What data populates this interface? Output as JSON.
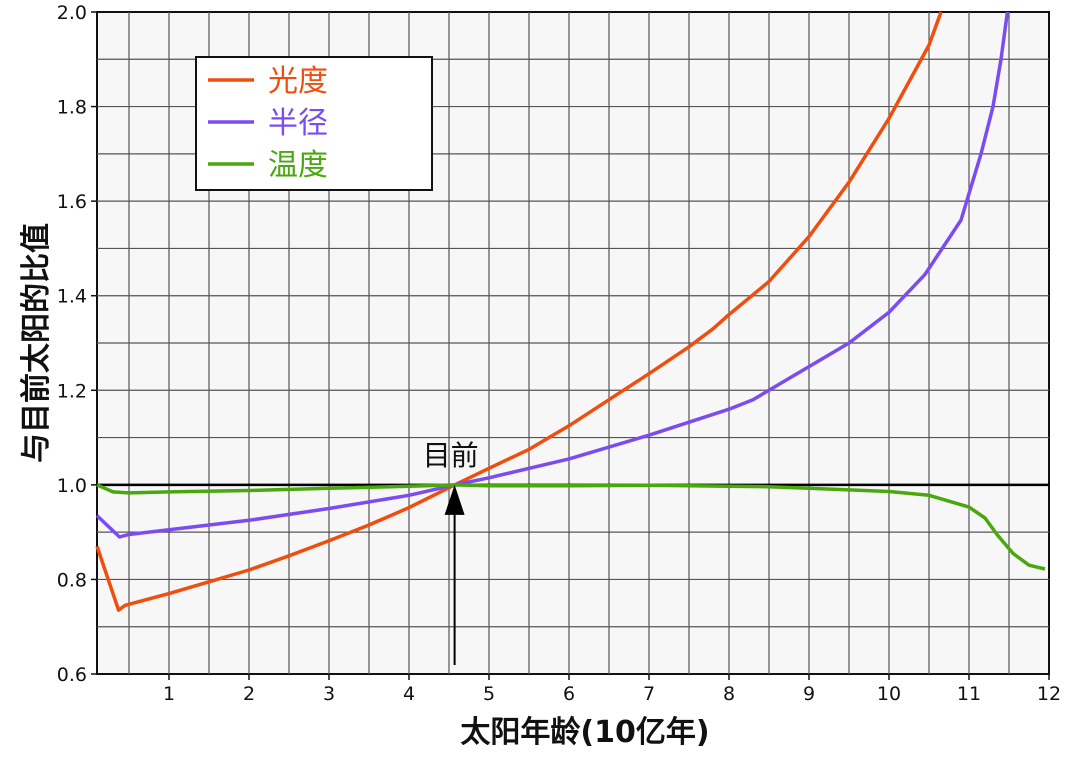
{
  "chart_data": {
    "type": "line",
    "xlabel": "太阳年龄(10亿年)",
    "ylabel": "与目前太阳的比值",
    "xlim": [
      0.1,
      12
    ],
    "ylim": [
      0.6,
      2.0
    ],
    "x_ticks": [
      "1",
      "2",
      "3",
      "4",
      "5",
      "6",
      "7",
      "8",
      "9",
      "10",
      "11",
      "12"
    ],
    "y_ticks": [
      "0.6",
      "0.8",
      "1.0",
      "1.2",
      "1.4",
      "1.6",
      "1.8",
      "2.0"
    ],
    "grid": true,
    "legend_position": "top-left",
    "reference_line": 1.0,
    "annotation": {
      "text": "目前",
      "x": 4.57,
      "y": 1.0
    },
    "series": [
      {
        "name": "光度",
        "color": "#f04e0f",
        "points": [
          [
            0.1,
            0.87
          ],
          [
            0.37,
            0.735
          ],
          [
            0.45,
            0.745
          ],
          [
            1.0,
            0.77
          ],
          [
            1.5,
            0.795
          ],
          [
            2.0,
            0.82
          ],
          [
            2.5,
            0.85
          ],
          [
            3.0,
            0.882
          ],
          [
            3.5,
            0.915
          ],
          [
            4.0,
            0.952
          ],
          [
            4.57,
            1.0
          ],
          [
            5.0,
            1.035
          ],
          [
            5.5,
            1.075
          ],
          [
            6.0,
            1.125
          ],
          [
            6.5,
            1.18
          ],
          [
            7.0,
            1.235
          ],
          [
            7.5,
            1.292
          ],
          [
            7.8,
            1.33
          ],
          [
            8.0,
            1.36
          ],
          [
            8.5,
            1.43
          ],
          [
            9.0,
            1.525
          ],
          [
            9.5,
            1.64
          ],
          [
            10.0,
            1.775
          ],
          [
            10.5,
            1.93
          ],
          [
            10.65,
            2.0
          ]
        ]
      },
      {
        "name": "半径",
        "color": "#7b4cf2",
        "points": [
          [
            0.1,
            0.935
          ],
          [
            0.38,
            0.89
          ],
          [
            0.5,
            0.895
          ],
          [
            1.0,
            0.905
          ],
          [
            2.0,
            0.925
          ],
          [
            3.0,
            0.95
          ],
          [
            4.0,
            0.978
          ],
          [
            4.57,
            1.0
          ],
          [
            5.0,
            1.015
          ],
          [
            6.0,
            1.055
          ],
          [
            7.0,
            1.105
          ],
          [
            8.0,
            1.16
          ],
          [
            8.3,
            1.18
          ],
          [
            9.0,
            1.25
          ],
          [
            9.5,
            1.3
          ],
          [
            10.0,
            1.365
          ],
          [
            10.45,
            1.445
          ],
          [
            10.9,
            1.56
          ],
          [
            11.15,
            1.7
          ],
          [
            11.3,
            1.8
          ],
          [
            11.4,
            1.9
          ],
          [
            11.48,
            2.0
          ]
        ]
      },
      {
        "name": "温度",
        "color": "#4aa80f",
        "points": [
          [
            0.1,
            1.0
          ],
          [
            0.3,
            0.985
          ],
          [
            0.5,
            0.983
          ],
          [
            1.0,
            0.985
          ],
          [
            2.0,
            0.988
          ],
          [
            3.0,
            0.993
          ],
          [
            4.0,
            0.997
          ],
          [
            4.57,
            1.0
          ],
          [
            5.0,
            0.998
          ],
          [
            6.0,
            0.998
          ],
          [
            7.0,
            0.999
          ],
          [
            8.0,
            0.997
          ],
          [
            8.5,
            0.996
          ],
          [
            9.0,
            0.993
          ],
          [
            10.0,
            0.986
          ],
          [
            10.5,
            0.978
          ],
          [
            11.0,
            0.953
          ],
          [
            11.2,
            0.93
          ],
          [
            11.35,
            0.895
          ],
          [
            11.55,
            0.855
          ],
          [
            11.75,
            0.83
          ],
          [
            11.95,
            0.822
          ]
        ]
      }
    ]
  }
}
